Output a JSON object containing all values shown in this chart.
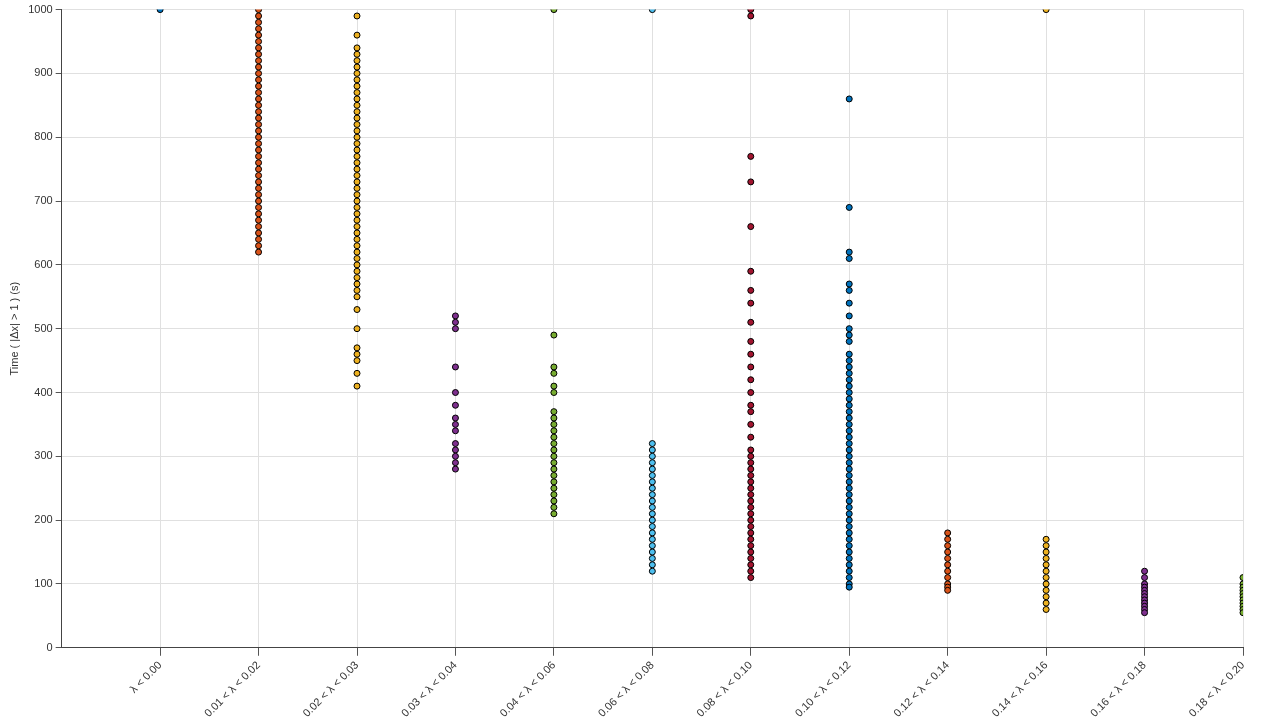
{
  "chart_data": {
    "type": "scatter",
    "ylabel": "Time ( |Δx| > 1 ) (s)",
    "categories": [
      "λ < 0.00",
      "0.01 < λ < 0.02",
      "0.02 < λ < 0.03",
      "0.03 < λ < 0.04",
      "0.04 < λ < 0.06",
      "0.06 < λ < 0.08",
      "0.08 < λ < 0.10",
      "0.10 < λ < 0.12",
      "0.12 < λ < 0.14",
      "0.14 < λ < 0.16",
      "0.16 < λ < 0.18",
      "0.18 < λ < 0.20"
    ],
    "ylim": [
      0,
      1000
    ],
    "yticks": [
      0,
      100,
      200,
      300,
      400,
      500,
      600,
      700,
      800,
      900,
      1000
    ],
    "grid": true,
    "legend": false,
    "marker": "circle",
    "series": [
      {
        "color": "#0072bd",
        "x": [
          "λ < 0.00"
        ],
        "values": [
          1000
        ]
      },
      {
        "color": "#d95319",
        "x": [
          "0.01 < λ < 0.02",
          "0.01 < λ < 0.02",
          "0.01 < λ < 0.02",
          "0.01 < λ < 0.02",
          "0.01 < λ < 0.02",
          "0.01 < λ < 0.02",
          "0.01 < λ < 0.02",
          "0.01 < λ < 0.02",
          "0.01 < λ < 0.02",
          "0.01 < λ < 0.02",
          "0.01 < λ < 0.02",
          "0.01 < λ < 0.02",
          "0.01 < λ < 0.02",
          "0.01 < λ < 0.02",
          "0.01 < λ < 0.02",
          "0.01 < λ < 0.02",
          "0.01 < λ < 0.02",
          "0.01 < λ < 0.02",
          "0.01 < λ < 0.02",
          "0.01 < λ < 0.02",
          "0.01 < λ < 0.02",
          "0.01 < λ < 0.02",
          "0.01 < λ < 0.02",
          "0.01 < λ < 0.02",
          "0.01 < λ < 0.02",
          "0.01 < λ < 0.02",
          "0.01 < λ < 0.02",
          "0.01 < λ < 0.02",
          "0.01 < λ < 0.02",
          "0.01 < λ < 0.02",
          "0.01 < λ < 0.02",
          "0.01 < λ < 0.02",
          "0.01 < λ < 0.02",
          "0.01 < λ < 0.02",
          "0.01 < λ < 0.02",
          "0.01 < λ < 0.02",
          "0.01 < λ < 0.02",
          "0.01 < λ < 0.02",
          "0.01 < λ < 0.02"
        ],
        "values": [
          1000,
          990,
          980,
          970,
          960,
          950,
          940,
          930,
          920,
          910,
          900,
          890,
          880,
          870,
          860,
          850,
          840,
          830,
          820,
          810,
          800,
          790,
          780,
          770,
          760,
          750,
          740,
          730,
          720,
          710,
          700,
          690,
          680,
          670,
          660,
          650,
          640,
          630,
          620
        ]
      },
      {
        "color": "#edb120",
        "x": [
          "0.02 < λ < 0.03",
          "0.02 < λ < 0.03",
          "0.02 < λ < 0.03",
          "0.02 < λ < 0.03",
          "0.02 < λ < 0.03",
          "0.02 < λ < 0.03",
          "0.02 < λ < 0.03",
          "0.02 < λ < 0.03",
          "0.02 < λ < 0.03",
          "0.02 < λ < 0.03",
          "0.02 < λ < 0.03",
          "0.02 < λ < 0.03",
          "0.02 < λ < 0.03",
          "0.02 < λ < 0.03",
          "0.02 < λ < 0.03",
          "0.02 < λ < 0.03",
          "0.02 < λ < 0.03",
          "0.02 < λ < 0.03",
          "0.02 < λ < 0.03",
          "0.02 < λ < 0.03",
          "0.02 < λ < 0.03",
          "0.02 < λ < 0.03",
          "0.02 < λ < 0.03",
          "0.02 < λ < 0.03",
          "0.02 < λ < 0.03",
          "0.02 < λ < 0.03",
          "0.02 < λ < 0.03",
          "0.02 < λ < 0.03",
          "0.02 < λ < 0.03",
          "0.02 < λ < 0.03",
          "0.02 < λ < 0.03",
          "0.02 < λ < 0.03",
          "0.02 < λ < 0.03",
          "0.02 < λ < 0.03",
          "0.02 < λ < 0.03",
          "0.02 < λ < 0.03",
          "0.02 < λ < 0.03",
          "0.02 < λ < 0.03",
          "0.02 < λ < 0.03",
          "0.02 < λ < 0.03",
          "0.02 < λ < 0.03",
          "0.02 < λ < 0.03",
          "0.02 < λ < 0.03",
          "0.02 < λ < 0.03",
          "0.02 < λ < 0.03",
          "0.02 < λ < 0.03",
          "0.02 < λ < 0.03",
          "0.02 < λ < 0.03",
          "0.02 < λ < 0.03"
        ],
        "values": [
          990,
          960,
          940,
          930,
          920,
          910,
          900,
          890,
          880,
          870,
          860,
          850,
          840,
          830,
          820,
          810,
          800,
          790,
          780,
          770,
          760,
          750,
          740,
          730,
          720,
          710,
          700,
          690,
          680,
          670,
          660,
          650,
          640,
          630,
          620,
          610,
          600,
          590,
          580,
          570,
          560,
          550,
          530,
          500,
          470,
          460,
          450,
          430,
          410
        ]
      },
      {
        "color": "#7e2f8e",
        "x": [
          "0.03 < λ < 0.04",
          "0.03 < λ < 0.04",
          "0.03 < λ < 0.04",
          "0.03 < λ < 0.04",
          "0.03 < λ < 0.04",
          "0.03 < λ < 0.04",
          "0.03 < λ < 0.04",
          "0.03 < λ < 0.04",
          "0.03 < λ < 0.04",
          "0.03 < λ < 0.04",
          "0.03 < λ < 0.04",
          "0.03 < λ < 0.04",
          "0.03 < λ < 0.04",
          "0.03 < λ < 0.04"
        ],
        "values": [
          520,
          510,
          500,
          440,
          400,
          380,
          360,
          350,
          340,
          320,
          310,
          300,
          290,
          280
        ]
      },
      {
        "color": "#77ac30",
        "x": [
          "0.04 < λ < 0.06",
          "0.04 < λ < 0.06",
          "0.04 < λ < 0.06",
          "0.04 < λ < 0.06",
          "0.04 < λ < 0.06",
          "0.04 < λ < 0.06",
          "0.04 < λ < 0.06",
          "0.04 < λ < 0.06",
          "0.04 < λ < 0.06",
          "0.04 < λ < 0.06",
          "0.04 < λ < 0.06",
          "0.04 < λ < 0.06",
          "0.04 < λ < 0.06",
          "0.04 < λ < 0.06",
          "0.04 < λ < 0.06",
          "0.04 < λ < 0.06",
          "0.04 < λ < 0.06",
          "0.04 < λ < 0.06",
          "0.04 < λ < 0.06",
          "0.04 < λ < 0.06",
          "0.04 < λ < 0.06",
          "0.04 < λ < 0.06",
          "0.04 < λ < 0.06"
        ],
        "values": [
          1000,
          490,
          440,
          430,
          410,
          400,
          370,
          360,
          350,
          340,
          330,
          320,
          310,
          300,
          290,
          280,
          270,
          260,
          250,
          240,
          230,
          220,
          210
        ]
      },
      {
        "color": "#4dbeee",
        "x": [
          "0.06 < λ < 0.08",
          "0.06 < λ < 0.08",
          "0.06 < λ < 0.08",
          "0.06 < λ < 0.08",
          "0.06 < λ < 0.08",
          "0.06 < λ < 0.08",
          "0.06 < λ < 0.08",
          "0.06 < λ < 0.08",
          "0.06 < λ < 0.08",
          "0.06 < λ < 0.08",
          "0.06 < λ < 0.08",
          "0.06 < λ < 0.08",
          "0.06 < λ < 0.08",
          "0.06 < λ < 0.08",
          "0.06 < λ < 0.08",
          "0.06 < λ < 0.08",
          "0.06 < λ < 0.08",
          "0.06 < λ < 0.08",
          "0.06 < λ < 0.08",
          "0.06 < λ < 0.08",
          "0.06 < λ < 0.08",
          "0.06 < λ < 0.08"
        ],
        "values": [
          1000,
          320,
          310,
          300,
          290,
          280,
          270,
          260,
          250,
          240,
          230,
          220,
          210,
          200,
          190,
          180,
          170,
          160,
          150,
          140,
          130,
          120
        ]
      },
      {
        "color": "#a2142f",
        "x": [
          "0.08 < λ < 0.10",
          "0.08 < λ < 0.10",
          "0.08 < λ < 0.10",
          "0.08 < λ < 0.10",
          "0.08 < λ < 0.10",
          "0.08 < λ < 0.10",
          "0.08 < λ < 0.10",
          "0.08 < λ < 0.10",
          "0.08 < λ < 0.10",
          "0.08 < λ < 0.10",
          "0.08 < λ < 0.10",
          "0.08 < λ < 0.10",
          "0.08 < λ < 0.10",
          "0.08 < λ < 0.10",
          "0.08 < λ < 0.10",
          "0.08 < λ < 0.10",
          "0.08 < λ < 0.10",
          "0.08 < λ < 0.10",
          "0.08 < λ < 0.10",
          "0.08 < λ < 0.10",
          "0.08 < λ < 0.10",
          "0.08 < λ < 0.10",
          "0.08 < λ < 0.10",
          "0.08 < λ < 0.10",
          "0.08 < λ < 0.10",
          "0.08 < λ < 0.10",
          "0.08 < λ < 0.10",
          "0.08 < λ < 0.10",
          "0.08 < λ < 0.10",
          "0.08 < λ < 0.10",
          "0.08 < λ < 0.10",
          "0.08 < λ < 0.10",
          "0.08 < λ < 0.10",
          "0.08 < λ < 0.10",
          "0.08 < λ < 0.10",
          "0.08 < λ < 0.10",
          "0.08 < λ < 0.10",
          "0.08 < λ < 0.10",
          "0.08 < λ < 0.10"
        ],
        "values": [
          1000,
          990,
          770,
          730,
          660,
          590,
          560,
          540,
          510,
          480,
          460,
          440,
          420,
          400,
          380,
          370,
          350,
          330,
          310,
          300,
          290,
          280,
          270,
          260,
          250,
          240,
          230,
          220,
          210,
          200,
          190,
          180,
          170,
          160,
          150,
          140,
          130,
          120,
          110
        ]
      },
      {
        "color": "#0072bd",
        "x": [
          "0.10 < λ < 0.12",
          "0.10 < λ < 0.12",
          "0.10 < λ < 0.12",
          "0.10 < λ < 0.12",
          "0.10 < λ < 0.12",
          "0.10 < λ < 0.12",
          "0.10 < λ < 0.12",
          "0.10 < λ < 0.12",
          "0.10 < λ < 0.12",
          "0.10 < λ < 0.12",
          "0.10 < λ < 0.12",
          "0.10 < λ < 0.12",
          "0.10 < λ < 0.12",
          "0.10 < λ < 0.12",
          "0.10 < λ < 0.12",
          "0.10 < λ < 0.12",
          "0.10 < λ < 0.12",
          "0.10 < λ < 0.12",
          "0.10 < λ < 0.12",
          "0.10 < λ < 0.12",
          "0.10 < λ < 0.12",
          "0.10 < λ < 0.12",
          "0.10 < λ < 0.12",
          "0.10 < λ < 0.12",
          "0.10 < λ < 0.12",
          "0.10 < λ < 0.12",
          "0.10 < λ < 0.12",
          "0.10 < λ < 0.12",
          "0.10 < λ < 0.12",
          "0.10 < λ < 0.12",
          "0.10 < λ < 0.12",
          "0.10 < λ < 0.12",
          "0.10 < λ < 0.12",
          "0.10 < λ < 0.12",
          "0.10 < λ < 0.12",
          "0.10 < λ < 0.12",
          "0.10 < λ < 0.12",
          "0.10 < λ < 0.12",
          "0.10 < λ < 0.12",
          "0.10 < λ < 0.12",
          "0.10 < λ < 0.12",
          "0.10 < λ < 0.12",
          "0.10 < λ < 0.12",
          "0.10 < λ < 0.12",
          "0.10 < λ < 0.12",
          "0.10 < λ < 0.12",
          "0.10 < λ < 0.12",
          "0.10 < λ < 0.12",
          "0.10 < λ < 0.12"
        ],
        "values": [
          860,
          690,
          620,
          610,
          570,
          560,
          540,
          520,
          500,
          490,
          480,
          460,
          450,
          440,
          430,
          420,
          410,
          400,
          390,
          380,
          370,
          360,
          350,
          340,
          330,
          320,
          310,
          300,
          290,
          280,
          270,
          260,
          250,
          240,
          230,
          220,
          210,
          200,
          190,
          180,
          170,
          160,
          150,
          140,
          130,
          120,
          110,
          100,
          95
        ]
      },
      {
        "color": "#d95319",
        "x": [
          "0.12 < λ < 0.14",
          "0.12 < λ < 0.14",
          "0.12 < λ < 0.14",
          "0.12 < λ < 0.14",
          "0.12 < λ < 0.14",
          "0.12 < λ < 0.14",
          "0.12 < λ < 0.14",
          "0.12 < λ < 0.14",
          "0.12 < λ < 0.14",
          "0.12 < λ < 0.14",
          "0.12 < λ < 0.14"
        ],
        "values": [
          180,
          170,
          160,
          150,
          140,
          130,
          120,
          110,
          100,
          95,
          90
        ]
      },
      {
        "color": "#edb120",
        "x": [
          "0.14 < λ < 0.16",
          "0.14 < λ < 0.16",
          "0.14 < λ < 0.16",
          "0.14 < λ < 0.16",
          "0.14 < λ < 0.16",
          "0.14 < λ < 0.16",
          "0.14 < λ < 0.16",
          "0.14 < λ < 0.16",
          "0.14 < λ < 0.16",
          "0.14 < λ < 0.16",
          "0.14 < λ < 0.16",
          "0.14 < λ < 0.16",
          "0.14 < λ < 0.16"
        ],
        "values": [
          1000,
          170,
          160,
          150,
          140,
          130,
          120,
          110,
          100,
          90,
          80,
          70,
          60
        ]
      },
      {
        "color": "#7e2f8e",
        "x": [
          "0.16 < λ < 0.18",
          "0.16 < λ < 0.18",
          "0.16 < λ < 0.18",
          "0.16 < λ < 0.18",
          "0.16 < λ < 0.18",
          "0.16 < λ < 0.18",
          "0.16 < λ < 0.18",
          "0.16 < λ < 0.18",
          "0.16 < λ < 0.18",
          "0.16 < λ < 0.18",
          "0.16 < λ < 0.18",
          "0.16 < λ < 0.18"
        ],
        "values": [
          120,
          110,
          100,
          95,
          90,
          85,
          80,
          75,
          70,
          65,
          60,
          55
        ]
      },
      {
        "color": "#77ac30",
        "x": [
          "0.18 < λ < 0.20",
          "0.18 < λ < 0.20",
          "0.18 < λ < 0.20",
          "0.18 < λ < 0.20",
          "0.18 < λ < 0.20",
          "0.18 < λ < 0.20",
          "0.18 < λ < 0.20",
          "0.18 < λ < 0.20",
          "0.18 < λ < 0.20",
          "0.18 < λ < 0.20",
          "0.18 < λ < 0.20"
        ],
        "values": [
          110,
          100,
          95,
          90,
          85,
          80,
          75,
          70,
          65,
          60,
          55
        ]
      }
    ]
  }
}
